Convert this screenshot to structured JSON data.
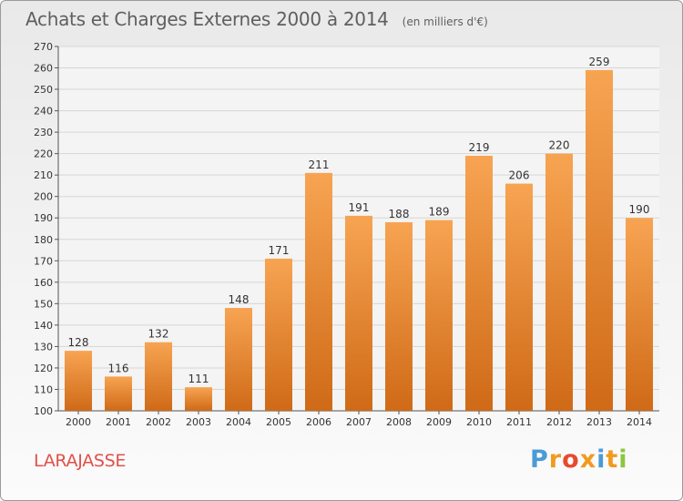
{
  "header": {
    "title": "Achats et Charges Externes 2000 à 2014",
    "subtitle": "(en milliers d'€)"
  },
  "footer": {
    "commune": "LARAJASSE",
    "logo_text": "Proxiti"
  },
  "colors": {
    "bar_light": "#f7a452",
    "bar_dark": "#cf6a17",
    "grid": "#d6d6d6",
    "axis_text": "#333333",
    "commune_text": "#e2504a",
    "logo_letters": [
      "#4a9bd6",
      "#f29a1f",
      "#e84a2f",
      "#f29a1f",
      "#4a9bd6",
      "#f29a1f",
      "#8dc63f"
    ]
  },
  "chart_data": {
    "type": "bar",
    "title": "Achats et Charges Externes 2000 à 2014",
    "subtitle": "(en milliers d'€)",
    "categories": [
      "2000",
      "2001",
      "2002",
      "2003",
      "2004",
      "2005",
      "2006",
      "2007",
      "2008",
      "2009",
      "2010",
      "2011",
      "2012",
      "2013",
      "2014"
    ],
    "values": [
      128,
      116,
      132,
      111,
      148,
      171,
      211,
      191,
      188,
      189,
      219,
      206,
      220,
      259,
      190
    ],
    "ylim": [
      100,
      270
    ],
    "yticks": [
      100,
      110,
      120,
      130,
      140,
      150,
      160,
      170,
      180,
      190,
      200,
      210,
      220,
      230,
      240,
      250,
      260,
      270
    ],
    "grid": true,
    "xlabel": "",
    "ylabel": ""
  }
}
